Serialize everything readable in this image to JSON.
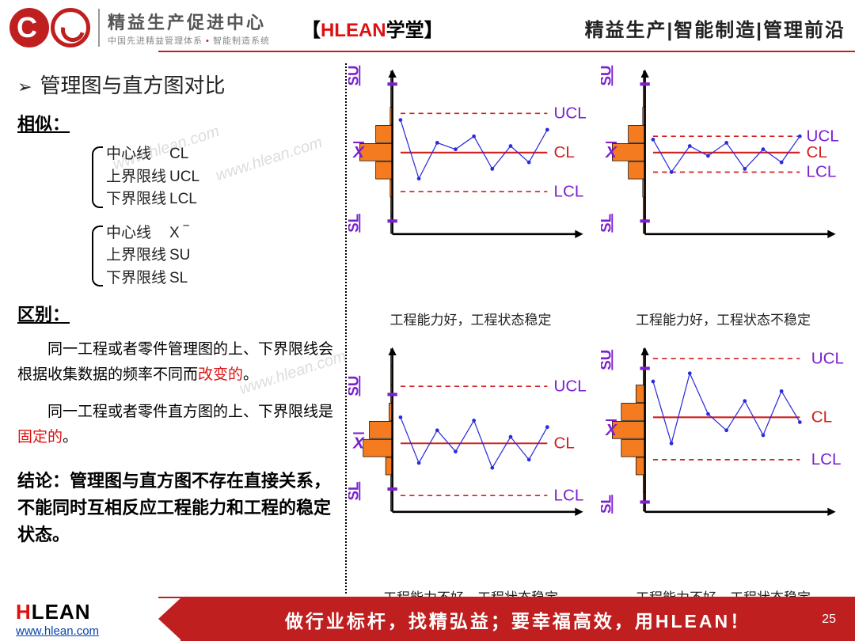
{
  "header": {
    "brand_title": "精益生产促进中心",
    "brand_sub_a": "中国先进精益管理体系",
    "brand_sub_b": "智能制造系统",
    "tag_red": "HLEAN",
    "tag_black": "学堂",
    "nav_text": "精益生产|智能制造|管理前沿"
  },
  "left": {
    "title": "管理图与直方图对比",
    "similar_heading": "相似：",
    "group1": [
      {
        "lbl": "中心线",
        "val": "CL"
      },
      {
        "lbl": "上界限线",
        "val": "UCL"
      },
      {
        "lbl": "下界限线",
        "val": "LCL"
      }
    ],
    "group2": [
      {
        "lbl": "中心线",
        "val": "X ‾"
      },
      {
        "lbl": "上界限线",
        "val": "SU"
      },
      {
        "lbl": "下界限线",
        "val": "SL"
      }
    ],
    "diff_heading": "区别：",
    "para1_a": "同一工程或者零件管理图的上、下界限线会根据收集数据的频率不同而",
    "para1_b": "改变的",
    "para1_c": "。",
    "para2_a": "同一工程或者零件直方图的上、下界限线是",
    "para2_b": "固定的",
    "para2_c": "。",
    "conclude": "结论：管理图与直方图不存在直接关系，不能同时互相反应工程能力和工程的稳定状态。"
  },
  "labels": {
    "su": "SU",
    "sl": "SL",
    "xbar": "X̄",
    "ucl": "UCL",
    "cl": "CL",
    "lcl": "LCL"
  },
  "colors": {
    "axis": "#000000",
    "dash": "#d11f1f",
    "cl_line": "#d11f1f",
    "series": "#2b2bdc",
    "purple": "#7b1fd1",
    "hist_fill": "#f47b1f",
    "hist_stroke": "#000000",
    "label_red": "#d11f1f",
    "label_purple": "#7b1fd1"
  },
  "charts": [
    {
      "caption": "工程能力好，工程状态稳定",
      "hist_center": 0.5,
      "hist_spread": 0.18,
      "ucl": 0.74,
      "cl": 0.5,
      "lcl": 0.26,
      "su": 0.92,
      "sl": 0.08,
      "series": [
        0.7,
        0.34,
        0.56,
        0.52,
        0.6,
        0.4,
        0.54,
        0.44,
        0.64
      ],
      "ucl_out": false
    },
    {
      "caption": "工程能力好，工程状态不稳定",
      "hist_center": 0.5,
      "hist_spread": 0.18,
      "ucl": 0.6,
      "cl": 0.5,
      "lcl": 0.38,
      "su": 0.92,
      "sl": 0.08,
      "series": [
        0.58,
        0.38,
        0.54,
        0.48,
        0.56,
        0.4,
        0.52,
        0.44,
        0.6
      ],
      "ucl_out": false
    },
    {
      "caption": "工程能力不好，工程状态稳定",
      "hist_center": 0.42,
      "hist_spread": 0.16,
      "ucl": 0.77,
      "cl": 0.42,
      "lcl": 0.1,
      "su": 0.72,
      "sl": 0.14,
      "series": [
        0.58,
        0.3,
        0.5,
        0.37,
        0.56,
        0.27,
        0.46,
        0.32,
        0.52
      ],
      "ucl_out": false
    },
    {
      "caption": "工程能力不好，工程状态稳定",
      "hist_center": 0.5,
      "hist_spread": 0.26,
      "ucl": 0.94,
      "cl": 0.58,
      "lcl": 0.32,
      "su": 0.88,
      "sl": 0.06,
      "series": [
        0.8,
        0.42,
        0.85,
        0.6,
        0.5,
        0.68,
        0.47,
        0.74,
        0.55
      ],
      "ucl_out": true
    }
  ],
  "watermark": "www.hlean.com",
  "footer": {
    "hlean": "LEAN",
    "url": "www.hlean.com",
    "slogan": "做行业标杆，找精弘益；要幸福高效，用HLEAN！",
    "page": "25"
  }
}
